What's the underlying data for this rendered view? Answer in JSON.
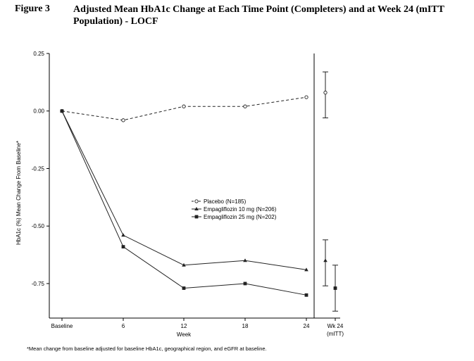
{
  "figure": {
    "label": "Figure 3",
    "title": "Adjusted Mean HbA1c Change at Each Time Point (Completers) and at Week 24 (mITT Population) - LOCF"
  },
  "chart_data": {
    "type": "line",
    "xlabel": "Week",
    "ylabel": "HbA1c (%) Mean Change From Baseline*",
    "categories": [
      "Baseline",
      "6",
      "12",
      "18",
      "24"
    ],
    "ylim": [
      -0.9,
      0.25
    ],
    "yticks": [
      "0.25",
      "0.00",
      "-0.25",
      "-0.50",
      "-0.75"
    ],
    "ytick_values": [
      0.25,
      0.0,
      -0.25,
      -0.5,
      -0.75
    ],
    "grid": false,
    "legend_position": "center-right",
    "series": [
      {
        "name": "Placebo (N=185)",
        "marker": "circle-open",
        "dash": true,
        "values": [
          0.0,
          -0.04,
          0.02,
          0.02,
          0.06
        ]
      },
      {
        "name": "Empagliflozin 10 mg (N=206)",
        "marker": "triangle",
        "dash": false,
        "values": [
          0.0,
          -0.54,
          -0.67,
          -0.65,
          -0.69
        ]
      },
      {
        "name": "Empagliflozin 25 mg (N=202)",
        "marker": "square",
        "dash": false,
        "values": [
          0.0,
          -0.59,
          -0.77,
          -0.75,
          -0.8
        ]
      }
    ],
    "week24_panel": {
      "label_line1": "Wk 24",
      "label_line2": "(mITT)",
      "intervals": [
        {
          "series": "Placebo (N=185)",
          "marker": "circle-open",
          "mean": 0.08,
          "low": -0.03,
          "high": 0.17
        },
        {
          "series": "Empagliflozin 10 mg (N=206)",
          "marker": "triangle",
          "mean": -0.65,
          "low": -0.76,
          "high": -0.56
        },
        {
          "series": "Empagliflozin 25 mg (N=202)",
          "marker": "square",
          "mean": -0.77,
          "low": -0.87,
          "high": -0.67
        }
      ]
    }
  },
  "footnote": "*Mean change from baseline adjusted for baseline HbA1c, geographical region, and eGFR at baseline."
}
